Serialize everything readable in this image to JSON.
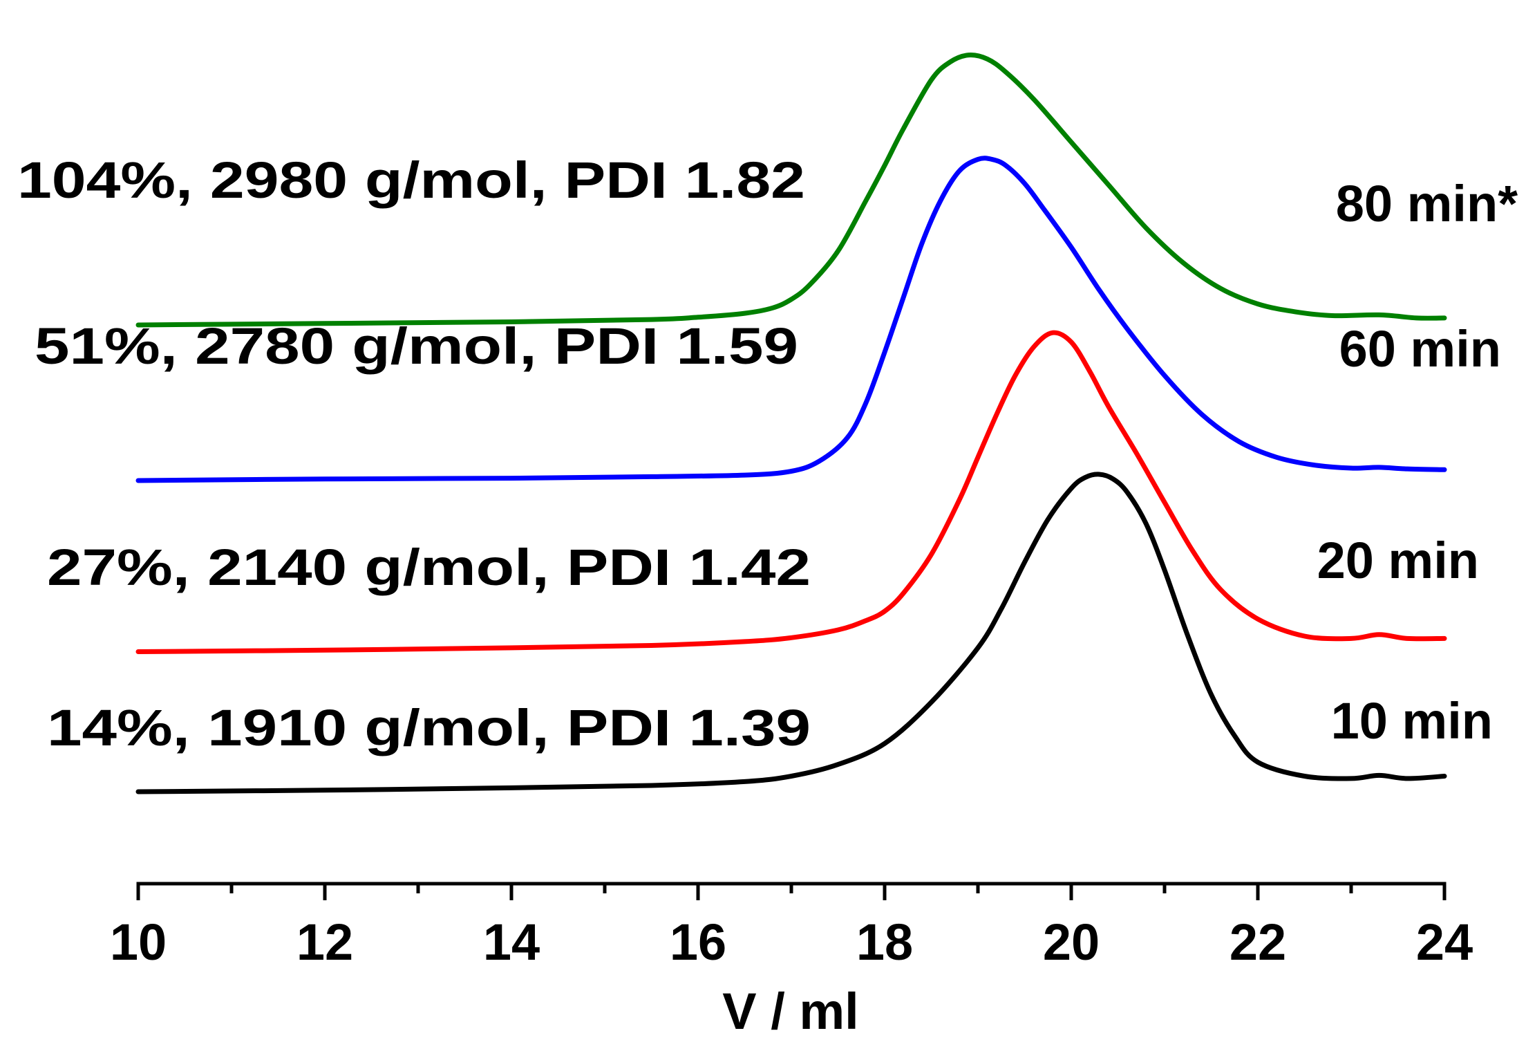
{
  "chart_data": {
    "type": "line",
    "title": "",
    "xlabel": "V / ml",
    "ylabel": "",
    "xlim": [
      10,
      24
    ],
    "ylim": [
      0,
      10
    ],
    "grid": false,
    "y_axis_shown": false,
    "xticks": [
      10,
      12,
      14,
      16,
      18,
      20,
      22,
      24
    ],
    "xtick_labels": [
      "10",
      "12",
      "14",
      "16",
      "18",
      "20",
      "22",
      "24"
    ],
    "minor_xticks": [
      11,
      13,
      15,
      17,
      19,
      21,
      23
    ],
    "series": [
      {
        "name": "10 min",
        "annotation": "14%, 1910 g/mol, PDI 1.39",
        "color": "#000000",
        "x": [
          10.0,
          12.0,
          14.0,
          15.5,
          16.5,
          17.0,
          17.5,
          18.0,
          18.5,
          19.0,
          19.25,
          19.5,
          19.75,
          20.0,
          20.15,
          20.3,
          20.45,
          20.6,
          20.8,
          21.0,
          21.25,
          21.5,
          21.75,
          22.0,
          22.5,
          23.0,
          23.3,
          23.6,
          24.0
        ],
        "y": [
          0.0,
          0.02,
          0.05,
          0.08,
          0.13,
          0.2,
          0.35,
          0.62,
          1.15,
          1.85,
          2.35,
          2.95,
          3.5,
          3.9,
          4.04,
          4.08,
          4.02,
          3.85,
          3.45,
          2.85,
          2.0,
          1.25,
          0.72,
          0.38,
          0.2,
          0.17,
          0.21,
          0.17,
          0.2
        ]
      },
      {
        "name": "20 min",
        "annotation": "27%, 2140 g/mol, PDI 1.42",
        "color": "#ff0000",
        "x": [
          10.0,
          12.0,
          14.0,
          15.5,
          16.5,
          17.0,
          17.5,
          17.8,
          18.0,
          18.2,
          18.5,
          18.8,
          19.0,
          19.2,
          19.4,
          19.6,
          19.8,
          20.0,
          20.2,
          20.4,
          20.7,
          21.0,
          21.3,
          21.6,
          22.0,
          22.5,
          23.0,
          23.3,
          23.6,
          24.0
        ],
        "y": [
          1.8,
          1.82,
          1.85,
          1.88,
          1.93,
          1.98,
          2.08,
          2.2,
          2.32,
          2.55,
          3.05,
          3.75,
          4.3,
          4.85,
          5.35,
          5.72,
          5.9,
          5.78,
          5.4,
          4.95,
          4.35,
          3.72,
          3.1,
          2.6,
          2.22,
          2.0,
          1.97,
          2.02,
          1.97,
          1.97
        ]
      },
      {
        "name": "60 min",
        "annotation": "51%, 2780 g/mol, PDI 1.59",
        "color": "#0000ff",
        "x": [
          10.0,
          12.0,
          14.0,
          15.5,
          16.5,
          17.0,
          17.3,
          17.6,
          17.8,
          18.0,
          18.2,
          18.4,
          18.6,
          18.8,
          19.0,
          19.15,
          19.3,
          19.5,
          19.7,
          20.0,
          20.3,
          20.6,
          21.0,
          21.4,
          21.8,
          22.2,
          22.6,
          23.0,
          23.3,
          23.6,
          24.0
        ],
        "y": [
          4.0,
          4.02,
          4.03,
          4.05,
          4.07,
          4.12,
          4.25,
          4.55,
          5.0,
          5.65,
          6.35,
          7.05,
          7.6,
          7.98,
          8.13,
          8.13,
          8.05,
          7.82,
          7.5,
          7.0,
          6.45,
          5.95,
          5.35,
          4.85,
          4.5,
          4.3,
          4.2,
          4.16,
          4.17,
          4.15,
          4.14
        ]
      },
      {
        "name": "80 min*",
        "annotation": "104%, 2980 g/mol, PDI 1.82",
        "color": "#008000",
        "x": [
          10.0,
          12.0,
          14.0,
          15.5,
          16.0,
          16.5,
          16.8,
          17.0,
          17.2,
          17.5,
          17.8,
          18.0,
          18.2,
          18.5,
          18.7,
          18.9,
          19.1,
          19.3,
          19.6,
          20.0,
          20.4,
          20.8,
          21.2,
          21.6,
          22.0,
          22.4,
          22.8,
          23.3,
          23.7,
          24.0
        ],
        "y": [
          6.0,
          6.02,
          6.04,
          6.07,
          6.1,
          6.15,
          6.22,
          6.33,
          6.52,
          6.95,
          7.6,
          8.05,
          8.52,
          9.15,
          9.38,
          9.47,
          9.42,
          9.25,
          8.9,
          8.35,
          7.8,
          7.25,
          6.8,
          6.47,
          6.27,
          6.17,
          6.12,
          6.13,
          6.09,
          6.09
        ]
      }
    ]
  }
}
